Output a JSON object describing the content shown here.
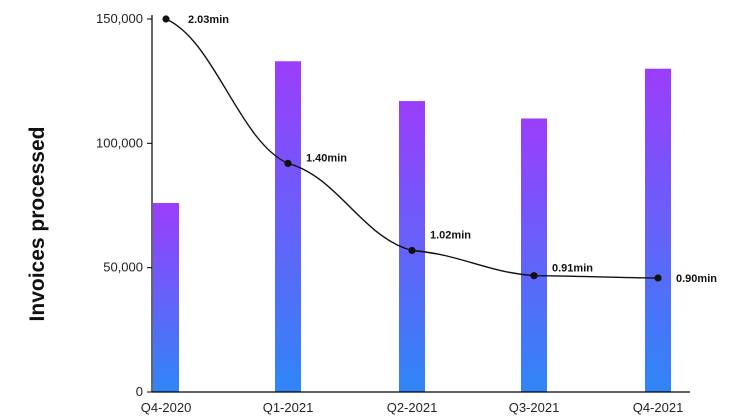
{
  "chart_data": {
    "type": "bar",
    "categories": [
      "Q4-2020",
      "Q1-2021",
      "Q2-2021",
      "Q3-2021",
      "Q4-2021"
    ],
    "series": [
      {
        "type": "bar",
        "values": [
          76000,
          133000,
          117000,
          110000,
          130000
        ]
      },
      {
        "type": "line",
        "values": [
          2.03,
          1.4,
          1.02,
          0.91,
          0.9
        ],
        "labels": [
          "2.03min",
          "1.40min",
          "1.02min",
          "0.91min",
          "0.90min"
        ]
      }
    ],
    "ylabel": "Invoices processed",
    "ylim": [
      0,
      150000
    ],
    "yticks": [
      {
        "value": 0,
        "label": "0"
      },
      {
        "value": 50000,
        "label": "50,000"
      },
      {
        "value": 100000,
        "label": "100,000"
      },
      {
        "value": 150000,
        "label": "150,000"
      }
    ],
    "grid": false,
    "colors": {
      "bar_top": "#9b3dfb",
      "bar_bottom": "#2f86f7",
      "line": "#111111"
    }
  }
}
